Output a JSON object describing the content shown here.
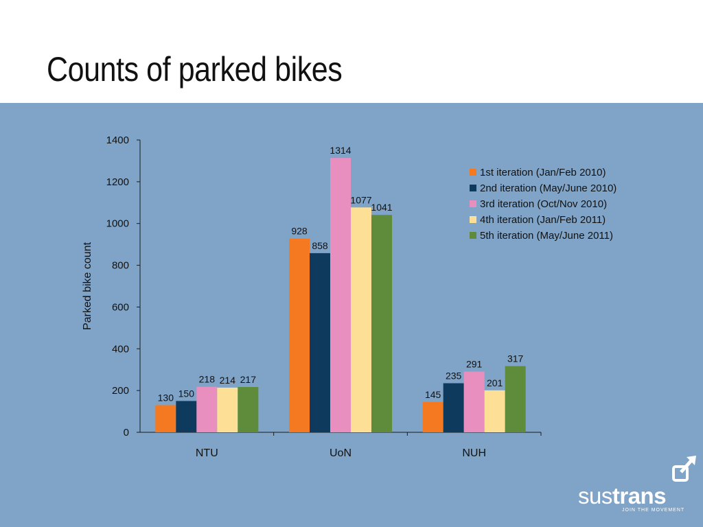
{
  "title": "Counts of parked bikes",
  "chart_data": {
    "type": "bar",
    "categories": [
      "NTU",
      "UoN",
      "NUH"
    ],
    "series": [
      {
        "name": "1st iteration (Jan/Feb 2010)",
        "values": [
          130,
          928,
          145
        ],
        "color": "#f47920"
      },
      {
        "name": "2nd iteration (May/June 2010)",
        "values": [
          150,
          858,
          235
        ],
        "color": "#0e3a5e"
      },
      {
        "name": "3rd iteration (Oct/Nov 2010)",
        "values": [
          218,
          1314,
          291
        ],
        "color": "#e88fbf"
      },
      {
        "name": "4th iteration (Jan/Feb 2011)",
        "values": [
          214,
          1077,
          201
        ],
        "color": "#fde095"
      },
      {
        "name": "5th iteration (May/June 2011)",
        "values": [
          217,
          1041,
          317
        ],
        "color": "#5e8c3a"
      }
    ],
    "ylabel": "Parked bike count",
    "xlabel": "",
    "ylim": [
      0,
      1400
    ],
    "yticks": [
      0,
      200,
      400,
      600,
      800,
      1000,
      1200,
      1400
    ],
    "data_labels": true,
    "grid": false,
    "legend_position": "right"
  },
  "logo": {
    "part1": "sus",
    "part2": "trans",
    "tagline": "JOIN THE MOVEMENT"
  },
  "colors": {
    "panel_background": "#7fa4c8",
    "axis": "#1a1a1a",
    "logo": "#ffffff"
  }
}
